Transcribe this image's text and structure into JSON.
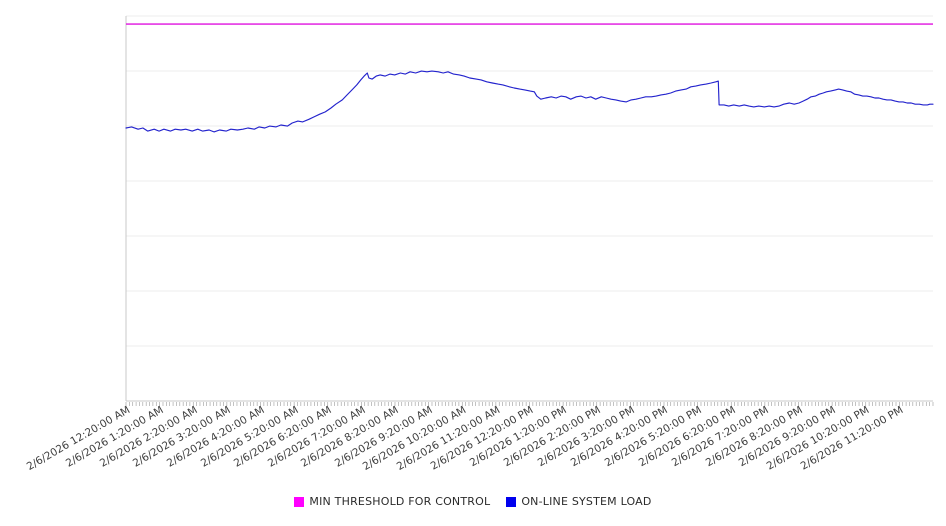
{
  "legend": {
    "items": [
      {
        "label": "MIN THRESHOLD FOR CONTROL",
        "color": "#ff00ff"
      },
      {
        "label": "ON-LINE SYSTEM LOAD",
        "color": "#0000ee"
      }
    ]
  },
  "chart_data": {
    "type": "line",
    "title": "",
    "xlabel": "",
    "ylabel": "",
    "y_axis_labels_visible": false,
    "ylim": [
      0,
      100
    ],
    "grid_horizontal_divisions": 7,
    "grid_color": "#ececec",
    "axis_color": "#c9c9c9",
    "tick_color": "#9a9a9a",
    "x_minor_tick_count": 240,
    "legend_position": "bottom-center",
    "x_tick_labels": [
      "2/6/2026 12:20:00 AM",
      "2/6/2026 1:20:00 AM",
      "2/6/2026 2:20:00 AM",
      "2/6/2026 3:20:00 AM",
      "2/6/2026 4:20:00 AM",
      "2/6/2026 5:20:00 AM",
      "2/6/2026 6:20:00 AM",
      "2/6/2026 7:20:00 AM",
      "2/6/2026 8:20:00 AM",
      "2/6/2026 9:20:00 AM",
      "2/6/2026 10:20:00 AM",
      "2/6/2026 11:20:00 AM",
      "2/6/2026 12:20:00 PM",
      "2/6/2026 1:20:00 PM",
      "2/6/2026 2:20:00 PM",
      "2/6/2026 3:20:00 PM",
      "2/6/2026 4:20:00 PM",
      "2/6/2026 5:20:00 PM",
      "2/6/2026 6:20:00 PM",
      "2/6/2026 7:20:00 PM",
      "2/6/2026 8:20:00 PM",
      "2/6/2026 9:20:00 PM",
      "2/6/2026 10:20:00 PM",
      "2/6/2026 11:20:00 PM"
    ],
    "series": [
      {
        "name": "MIN THRESHOLD FOR CONTROL",
        "type": "hline",
        "color": "#df10df",
        "width": 1.4,
        "value": 97.9
      },
      {
        "name": "ON-LINE SYSTEM LOAD",
        "type": "line",
        "color": "#2323cd",
        "width": 1.15,
        "points": [
          [
            0.0,
            70.9
          ],
          [
            0.007,
            71.2
          ],
          [
            0.015,
            70.6
          ],
          [
            0.021,
            70.9
          ],
          [
            0.027,
            70.1
          ],
          [
            0.035,
            70.6
          ],
          [
            0.041,
            70.1
          ],
          [
            0.047,
            70.6
          ],
          [
            0.055,
            70.1
          ],
          [
            0.061,
            70.6
          ],
          [
            0.068,
            70.4
          ],
          [
            0.074,
            70.6
          ],
          [
            0.082,
            70.1
          ],
          [
            0.089,
            70.6
          ],
          [
            0.095,
            70.1
          ],
          [
            0.103,
            70.4
          ],
          [
            0.109,
            69.9
          ],
          [
            0.116,
            70.4
          ],
          [
            0.124,
            70.1
          ],
          [
            0.13,
            70.6
          ],
          [
            0.138,
            70.4
          ],
          [
            0.145,
            70.6
          ],
          [
            0.151,
            70.9
          ],
          [
            0.159,
            70.6
          ],
          [
            0.165,
            71.2
          ],
          [
            0.172,
            70.9
          ],
          [
            0.178,
            71.4
          ],
          [
            0.186,
            71.2
          ],
          [
            0.192,
            71.7
          ],
          [
            0.2,
            71.4
          ],
          [
            0.206,
            72.2
          ],
          [
            0.213,
            72.7
          ],
          [
            0.219,
            72.5
          ],
          [
            0.227,
            73.2
          ],
          [
            0.233,
            73.8
          ],
          [
            0.24,
            74.5
          ],
          [
            0.247,
            75.1
          ],
          [
            0.254,
            76.1
          ],
          [
            0.26,
            77.1
          ],
          [
            0.268,
            78.2
          ],
          [
            0.274,
            79.5
          ],
          [
            0.28,
            80.8
          ],
          [
            0.286,
            82.1
          ],
          [
            0.291,
            83.4
          ],
          [
            0.295,
            84.4
          ],
          [
            0.299,
            85.2
          ],
          [
            0.301,
            83.9
          ],
          [
            0.305,
            83.6
          ],
          [
            0.31,
            84.4
          ],
          [
            0.315,
            84.7
          ],
          [
            0.321,
            84.4
          ],
          [
            0.327,
            84.9
          ],
          [
            0.333,
            84.7
          ],
          [
            0.34,
            85.2
          ],
          [
            0.346,
            84.9
          ],
          [
            0.352,
            85.5
          ],
          [
            0.359,
            85.2
          ],
          [
            0.366,
            85.7
          ],
          [
            0.373,
            85.5
          ],
          [
            0.379,
            85.7
          ],
          [
            0.387,
            85.5
          ],
          [
            0.393,
            85.2
          ],
          [
            0.399,
            85.5
          ],
          [
            0.406,
            84.9
          ],
          [
            0.413,
            84.7
          ],
          [
            0.419,
            84.4
          ],
          [
            0.426,
            83.9
          ],
          [
            0.434,
            83.6
          ],
          [
            0.44,
            83.4
          ],
          [
            0.447,
            82.9
          ],
          [
            0.454,
            82.6
          ],
          [
            0.461,
            82.3
          ],
          [
            0.467,
            82.1
          ],
          [
            0.475,
            81.6
          ],
          [
            0.481,
            81.3
          ],
          [
            0.488,
            81.0
          ],
          [
            0.494,
            80.8
          ],
          [
            0.501,
            80.5
          ],
          [
            0.506,
            80.3
          ],
          [
            0.509,
            79.2
          ],
          [
            0.514,
            78.4
          ],
          [
            0.52,
            78.7
          ],
          [
            0.527,
            79.0
          ],
          [
            0.533,
            78.7
          ],
          [
            0.539,
            79.2
          ],
          [
            0.545,
            79.0
          ],
          [
            0.551,
            78.4
          ],
          [
            0.558,
            79.0
          ],
          [
            0.564,
            79.2
          ],
          [
            0.57,
            78.7
          ],
          [
            0.576,
            79.0
          ],
          [
            0.582,
            78.4
          ],
          [
            0.589,
            79.0
          ],
          [
            0.595,
            78.7
          ],
          [
            0.601,
            78.4
          ],
          [
            0.607,
            78.2
          ],
          [
            0.613,
            77.9
          ],
          [
            0.62,
            77.7
          ],
          [
            0.626,
            78.2
          ],
          [
            0.632,
            78.4
          ],
          [
            0.638,
            78.7
          ],
          [
            0.644,
            79.0
          ],
          [
            0.651,
            79.0
          ],
          [
            0.657,
            79.2
          ],
          [
            0.663,
            79.5
          ],
          [
            0.669,
            79.7
          ],
          [
            0.675,
            80.0
          ],
          [
            0.681,
            80.5
          ],
          [
            0.688,
            80.8
          ],
          [
            0.694,
            81.0
          ],
          [
            0.7,
            81.6
          ],
          [
            0.706,
            81.8
          ],
          [
            0.712,
            82.1
          ],
          [
            0.719,
            82.3
          ],
          [
            0.725,
            82.6
          ],
          [
            0.731,
            82.9
          ],
          [
            0.734,
            83.1
          ],
          [
            0.735,
            76.9
          ],
          [
            0.741,
            76.9
          ],
          [
            0.747,
            76.6
          ],
          [
            0.753,
            76.9
          ],
          [
            0.76,
            76.6
          ],
          [
            0.766,
            76.9
          ],
          [
            0.772,
            76.6
          ],
          [
            0.778,
            76.4
          ],
          [
            0.784,
            76.6
          ],
          [
            0.791,
            76.4
          ],
          [
            0.797,
            76.6
          ],
          [
            0.803,
            76.4
          ],
          [
            0.809,
            76.6
          ],
          [
            0.815,
            77.1
          ],
          [
            0.822,
            77.4
          ],
          [
            0.828,
            77.1
          ],
          [
            0.834,
            77.4
          ],
          [
            0.839,
            77.9
          ],
          [
            0.844,
            78.4
          ],
          [
            0.849,
            79.0
          ],
          [
            0.854,
            79.2
          ],
          [
            0.859,
            79.7
          ],
          [
            0.864,
            80.0
          ],
          [
            0.868,
            80.3
          ],
          [
            0.873,
            80.5
          ],
          [
            0.879,
            80.8
          ],
          [
            0.883,
            81.0
          ],
          [
            0.888,
            80.8
          ],
          [
            0.893,
            80.5
          ],
          [
            0.898,
            80.3
          ],
          [
            0.903,
            79.7
          ],
          [
            0.908,
            79.5
          ],
          [
            0.913,
            79.2
          ],
          [
            0.918,
            79.2
          ],
          [
            0.923,
            79.0
          ],
          [
            0.928,
            78.7
          ],
          [
            0.933,
            78.7
          ],
          [
            0.938,
            78.4
          ],
          [
            0.943,
            78.2
          ],
          [
            0.948,
            78.2
          ],
          [
            0.953,
            77.9
          ],
          [
            0.958,
            77.7
          ],
          [
            0.963,
            77.7
          ],
          [
            0.968,
            77.4
          ],
          [
            0.973,
            77.4
          ],
          [
            0.978,
            77.1
          ],
          [
            0.983,
            77.1
          ],
          [
            0.988,
            76.9
          ],
          [
            0.993,
            76.9
          ],
          [
            0.996,
            77.1
          ],
          [
            1.0,
            77.1
          ]
        ]
      }
    ]
  }
}
